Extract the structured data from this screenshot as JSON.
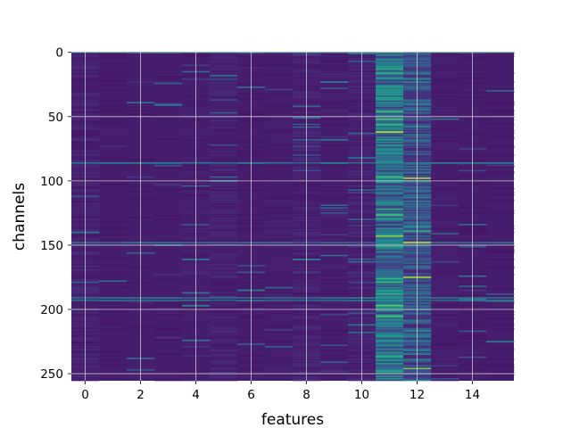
{
  "chart_data": {
    "type": "heatmap",
    "title": "",
    "xlabel": "features",
    "ylabel": "channels",
    "columns": 16,
    "rows": 256,
    "xlim": [
      -0.5,
      15.5
    ],
    "ylim": [
      255.5,
      -0.5
    ],
    "y_axis_inverted": true,
    "x_ticks": [
      0,
      2,
      4,
      6,
      8,
      10,
      12,
      14
    ],
    "y_ticks": [
      0,
      50,
      100,
      150,
      200,
      250
    ],
    "grid": true,
    "colormap": "viridis",
    "colors": {
      "background": "#440154",
      "low": "#472d7b",
      "mid": "#21918c",
      "high": "#fde725",
      "grid": "#e0e0e0"
    },
    "column_mean_level": [
      0.1,
      0.06,
      0.05,
      0.05,
      0.08,
      0.1,
      0.06,
      0.08,
      0.1,
      0.08,
      0.1,
      0.45,
      0.3,
      0.08,
      0.06,
      0.06
    ],
    "highlight_rows": [
      {
        "feature": 11,
        "channel": 62,
        "level": 0.95
      },
      {
        "feature": 11,
        "channel": 97,
        "level": 0.7
      },
      {
        "feature": 12,
        "channel": 98,
        "level": 0.92
      },
      {
        "feature": 11,
        "channel": 143,
        "level": 0.85
      },
      {
        "feature": 12,
        "channel": 148,
        "level": 0.95
      },
      {
        "feature": 12,
        "channel": 175,
        "level": 0.9
      },
      {
        "feature": 12,
        "channel": 246,
        "level": 0.8
      },
      {
        "feature": 11,
        "channel": 46,
        "level": 0.7
      },
      {
        "feature": 11,
        "channel": 176,
        "level": 0.65
      }
    ],
    "bright_horizontal_rows": [
      0,
      86,
      148,
      191,
      193
    ]
  }
}
